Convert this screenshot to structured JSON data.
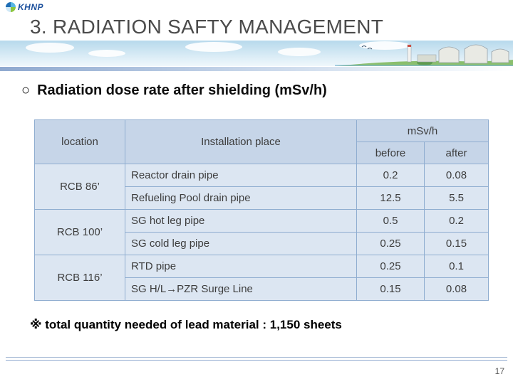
{
  "slide": {
    "title": "3. RADIATION SAFTY MANAGEMENT",
    "page_number": "17"
  },
  "logo": {
    "text": "KHNP"
  },
  "bullet": {
    "marker": "○",
    "text": "Radiation dose rate after shielding (mSv/h)"
  },
  "table": {
    "headers": {
      "location": "location",
      "place": "Installation place",
      "unit": "mSv/h",
      "before": "before",
      "after": "after"
    },
    "groups": [
      {
        "location": "RCB 86’",
        "rows": [
          {
            "place": "Reactor drain pipe",
            "before": "0.2",
            "after": "0.08"
          },
          {
            "place": "Refueling Pool drain pipe",
            "before": "12.5",
            "after": "5.5"
          }
        ]
      },
      {
        "location": "RCB 100’",
        "rows": [
          {
            "place": "SG hot leg pipe",
            "before": "0.5",
            "after": "0.2"
          },
          {
            "place": "SG cold leg pipe",
            "before": "0.25",
            "after": "0.15"
          }
        ]
      },
      {
        "location": "RCB 116’",
        "rows": [
          {
            "place": "RTD pipe",
            "before": "0.25",
            "after": "0.1"
          },
          {
            "place": "SG H/L→PZR Surge Line",
            "before": "0.15",
            "after": "0.08"
          }
        ]
      }
    ]
  },
  "footnote": "※ total quantity needed of lead material : 1,150 sheets",
  "colors": {
    "header_bg": "#c6d5e8",
    "cell_bg": "#dce6f2",
    "table_border": "#8fadd0",
    "title_text": "#4b4b4b",
    "logo_blue": "#1b4f9c",
    "banner_sky": "#b7d9ec",
    "banner_ground": "#8abf6d"
  }
}
